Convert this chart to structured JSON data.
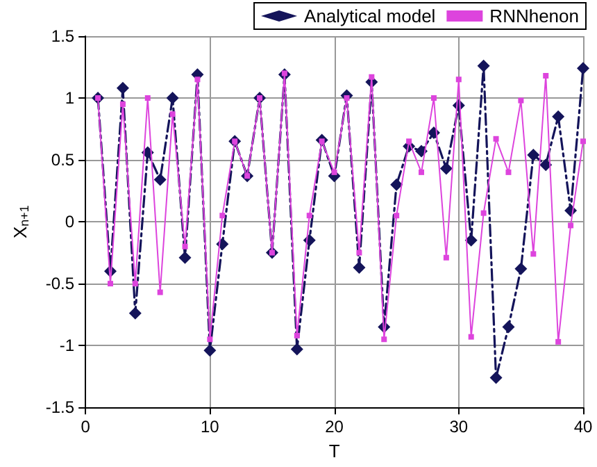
{
  "chart_data": {
    "type": "line",
    "xlabel": "T",
    "ylabel": "X$_{n+1}$",
    "x": [
      1,
      2,
      3,
      4,
      5,
      6,
      7,
      8,
      9,
      10,
      11,
      12,
      13,
      14,
      15,
      16,
      17,
      18,
      19,
      20,
      21,
      22,
      23,
      24,
      25,
      26,
      27,
      28,
      29,
      30,
      31,
      32,
      33,
      34,
      35,
      36,
      37,
      38,
      39,
      40
    ],
    "series": [
      {
        "name": "Analytical model",
        "color": "#14145a",
        "marker": "diamond",
        "line_style": "dashed",
        "values": [
          1.0,
          -0.4,
          1.08,
          -0.74,
          0.56,
          0.34,
          1.0,
          -0.29,
          1.19,
          -1.04,
          -0.18,
          0.65,
          0.37,
          1.0,
          -0.25,
          1.19,
          -1.03,
          -0.15,
          0.66,
          0.37,
          1.02,
          -0.37,
          1.13,
          -0.85,
          0.3,
          0.61,
          0.57,
          0.72,
          0.43,
          0.94,
          -0.15,
          1.26,
          -1.26,
          -0.85,
          -0.38,
          0.54,
          0.46,
          0.85,
          0.09,
          1.24
        ]
      },
      {
        "name": "RNNhenon",
        "color": "#dd44dd",
        "marker": "square",
        "line_style": "solid",
        "values": [
          1.0,
          -0.5,
          0.95,
          -0.5,
          1.0,
          -0.57,
          0.87,
          -0.2,
          1.15,
          -0.95,
          0.05,
          0.65,
          0.37,
          1.0,
          -0.25,
          1.2,
          -0.92,
          0.05,
          0.65,
          0.4,
          1.0,
          -0.25,
          1.17,
          -0.95,
          0.05,
          0.65,
          0.4,
          1.0,
          -0.29,
          1.15,
          -0.93,
          0.07,
          0.67,
          0.4,
          0.98,
          -0.26,
          1.18,
          -0.97,
          -0.03,
          0.65
        ]
      }
    ],
    "xlim": [
      0,
      40
    ],
    "xticks": [
      0,
      10,
      20,
      30,
      40
    ],
    "ylim": [
      -1.5,
      1.5
    ],
    "yticks": [
      -1.5,
      -1,
      -0.5,
      0,
      0.5,
      1,
      1.5
    ],
    "grid": true,
    "legend": "top right"
  }
}
